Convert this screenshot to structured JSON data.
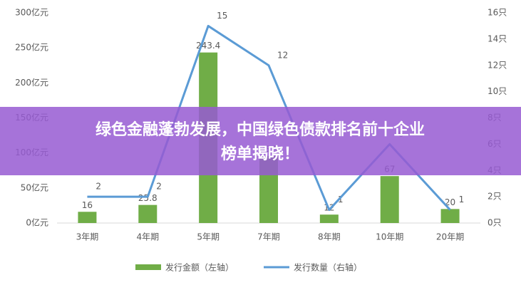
{
  "chart_data": {
    "type": "bar_line",
    "categories": [
      "3年期",
      "4年期",
      "5年期",
      "7年期",
      "8年期",
      "10年期",
      "20年期"
    ],
    "series": [
      {
        "name": "发行金额（左轴）",
        "type": "bar",
        "color": "#70ad47",
        "values": [
          16,
          25.8,
          243.4,
          95.5,
          12,
          67,
          20
        ]
      },
      {
        "name": "发行数量（右轴）",
        "type": "line",
        "color": "#5b9bd5",
        "axis": "y2",
        "values": [
          2,
          2,
          15,
          12,
          1,
          6,
          1
        ]
      }
    ],
    "ylim": [
      0,
      300
    ],
    "yticks": [
      {
        "value": 0,
        "label": "0亿元"
      },
      {
        "value": 50,
        "label": "50亿元"
      },
      {
        "value": 100,
        "label": "100亿元"
      },
      {
        "value": 150,
        "label": "150亿元"
      },
      {
        "value": 200,
        "label": "200亿元"
      },
      {
        "value": 250,
        "label": "250亿元"
      },
      {
        "value": 300,
        "label": "300亿元"
      }
    ],
    "y2lim": [
      0,
      16
    ],
    "y2ticks": [
      {
        "value": 0,
        "label": "0只"
      },
      {
        "value": 2,
        "label": "2只"
      },
      {
        "value": 4,
        "label": "4只"
      },
      {
        "value": 6,
        "label": "6只"
      },
      {
        "value": 8,
        "label": "8只"
      },
      {
        "value": 10,
        "label": "10只"
      },
      {
        "value": 12,
        "label": "12只"
      },
      {
        "value": 14,
        "label": "14只"
      },
      {
        "value": 16,
        "label": "16只"
      }
    ],
    "legend": "bottom"
  },
  "overlay": {
    "lines": [
      "绿色金融蓬勃发展，中国绿色债款排名前十企业",
      "榜单揭晓！"
    ]
  }
}
